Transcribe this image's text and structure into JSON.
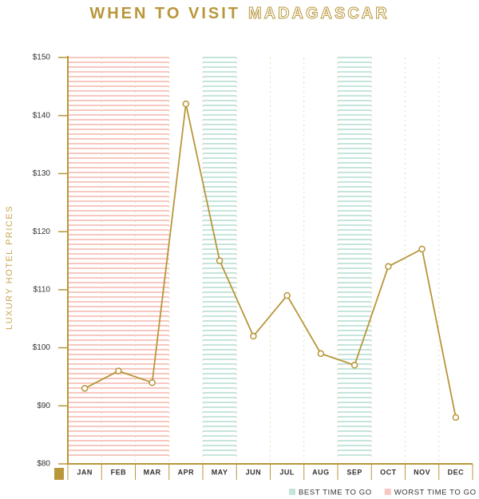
{
  "chart_data": {
    "type": "line",
    "title": "WHEN TO VISIT",
    "title_highlight": "MADAGASCAR",
    "y_label": "LUXURY HOTEL PRICES",
    "categories": [
      "JAN",
      "FEB",
      "MAR",
      "APR",
      "MAY",
      "JUN",
      "JUL",
      "AUG",
      "SEP",
      "OCT",
      "NOV",
      "DEC"
    ],
    "series": [
      {
        "name": "Luxury hotel prices",
        "color": "#b8963a",
        "values": [
          93,
          96,
          94,
          142,
          115,
          102,
          109,
          99,
          97,
          114,
          117,
          88
        ]
      }
    ],
    "ylim": [
      80,
      150
    ],
    "yticks": [
      {
        "value": 80,
        "label": "$80"
      },
      {
        "value": 90,
        "label": "$90"
      },
      {
        "value": 100,
        "label": "$100"
      },
      {
        "value": 110,
        "label": "$110"
      },
      {
        "value": 120,
        "label": "$120"
      },
      {
        "value": 130,
        "label": "$130"
      },
      {
        "value": 140,
        "label": "$140"
      },
      {
        "value": 150,
        "label": "$150"
      }
    ],
    "highlights": [
      {
        "name": "BEST TIME TO GO",
        "color": "#c5e5dc",
        "months": [
          4,
          8
        ]
      },
      {
        "name": "WORST TIME TO GO",
        "color": "#f7c8c0",
        "months": [
          0,
          1,
          2
        ]
      }
    ]
  }
}
